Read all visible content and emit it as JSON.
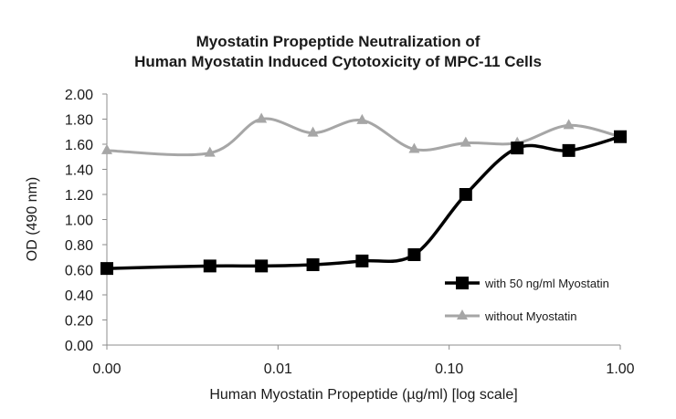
{
  "chart_data": {
    "type": "line",
    "title_line1": "Myostatin Propeptide Neutralization of",
    "title_line2": "Human Myostatin Induced Cytotoxicity of MPC-11 Cells",
    "xlabel": "Human Myostatin Propeptide (µg/ml) [log scale]",
    "ylabel": "OD (490 nm)",
    "x_scale": "log",
    "x_tick_labels": [
      "0.00",
      "0.01",
      "0.10",
      "1.00"
    ],
    "y_tick_labels": [
      "0.00",
      "0.20",
      "0.40",
      "0.60",
      "0.80",
      "1.00",
      "1.20",
      "1.40",
      "1.60",
      "1.80",
      "2.00"
    ],
    "ylim": [
      0,
      2.0
    ],
    "grid": false,
    "legend_position": "bottom-right",
    "x": [
      0.001,
      0.004,
      0.008,
      0.016,
      0.031,
      0.0625,
      0.125,
      0.25,
      0.5,
      1.0
    ],
    "series": [
      {
        "name": "with 50 ng/ml Myostatin",
        "color": "#000000",
        "marker": "square",
        "values": [
          0.61,
          0.63,
          0.63,
          0.64,
          0.67,
          0.72,
          1.2,
          1.57,
          1.55,
          1.66
        ]
      },
      {
        "name": "without Myostatin",
        "color": "#a6a6a6",
        "marker": "triangle",
        "values": [
          1.55,
          1.53,
          1.8,
          1.69,
          1.79,
          1.56,
          1.61,
          1.61,
          1.75,
          1.66
        ]
      }
    ]
  }
}
